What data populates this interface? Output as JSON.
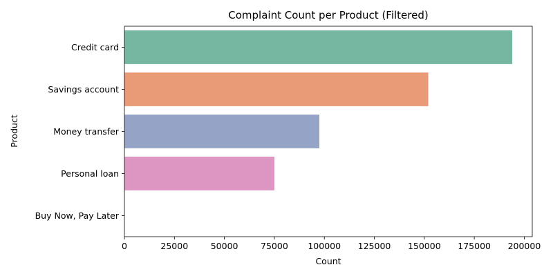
{
  "chart_data": {
    "type": "bar",
    "orientation": "horizontal",
    "title": "Complaint Count per Product (Filtered)",
    "xlabel": "Count",
    "ylabel": "Product",
    "categories": [
      "Credit card",
      "Savings account",
      "Money transfer",
      "Personal loan",
      "Buy Now, Pay Later"
    ],
    "values": [
      194000,
      152000,
      97500,
      75000,
      0
    ],
    "colors": [
      "#76b7a1",
      "#e99a77",
      "#95a4c6",
      "#dc96c1",
      "#a9d35f"
    ],
    "xlim": [
      0,
      204000
    ],
    "xticks": [
      0,
      25000,
      50000,
      75000,
      100000,
      125000,
      150000,
      175000,
      200000
    ],
    "grid": false,
    "legend": "none"
  }
}
